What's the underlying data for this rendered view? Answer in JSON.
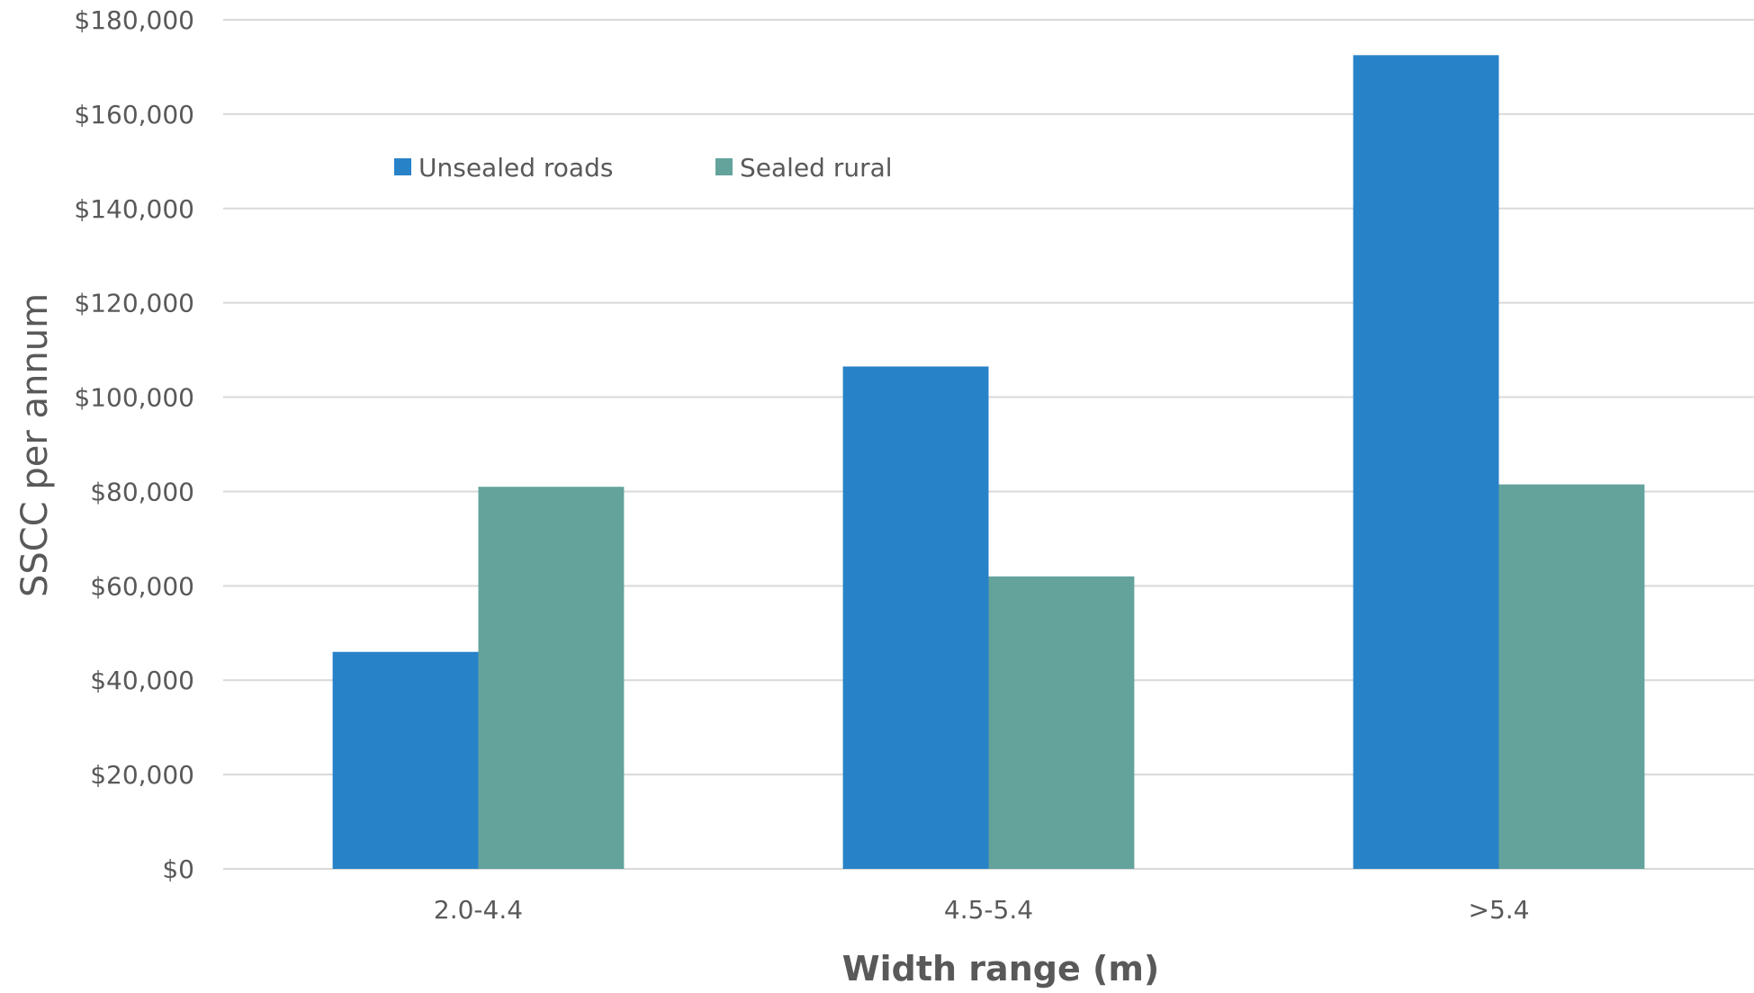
{
  "chart_data": {
    "type": "bar",
    "categories": [
      "2.0-4.4",
      "4.5-5.4",
      ">5.4"
    ],
    "series": [
      {
        "name": "Unsealed roads",
        "values": [
          46000,
          106500,
          172500
        ],
        "color": "#2882C8"
      },
      {
        "name": "Sealed rural",
        "values": [
          81000,
          62000,
          81500
        ],
        "color": "#63A39C"
      }
    ],
    "xlabel": "Width range (m)",
    "ylabel": "SSCC per annum",
    "ylim": [
      0,
      180000
    ],
    "yticks": [
      0,
      20000,
      40000,
      60000,
      80000,
      100000,
      120000,
      140000,
      160000,
      180000
    ],
    "ytick_labels": [
      "$0",
      "$20,000",
      "$40,000",
      "$60,000",
      "$80,000",
      "$100,000",
      "$120,000",
      "$140,000",
      "$160,000",
      "$180,000"
    ],
    "grid": true,
    "legend": "top-left"
  }
}
